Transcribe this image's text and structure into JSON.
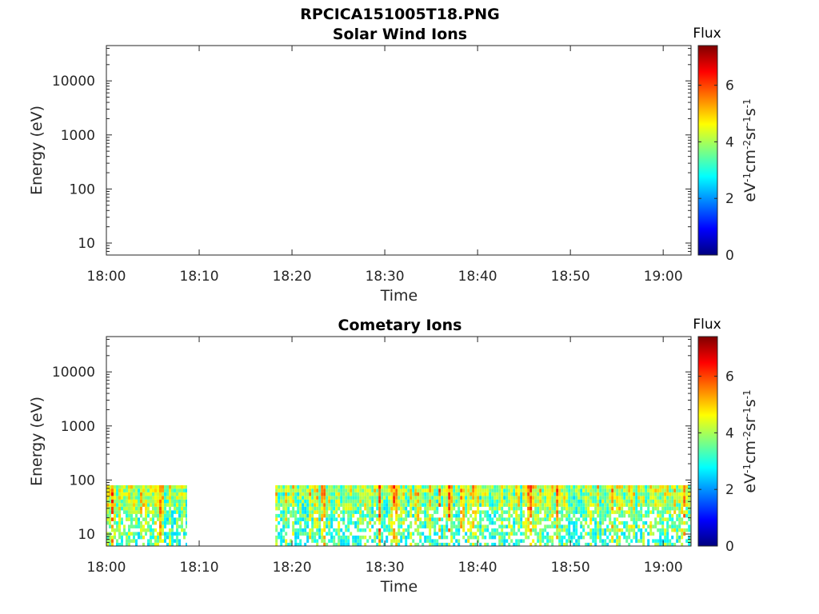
{
  "figure": {
    "title": "RPCICA151005T18.PNG"
  },
  "colormap": {
    "name": "jet",
    "stops": [
      "#00007f",
      "#0000ff",
      "#007fff",
      "#00ffff",
      "#7fff7f",
      "#ffff00",
      "#ff7f00",
      "#ff0000",
      "#7f0000"
    ]
  },
  "chart_data": [
    {
      "type": "heatmap",
      "title": "Solar Wind Ions",
      "xlabel": "Time",
      "ylabel": "Energy (eV)",
      "x_ticks": [
        "18:00",
        "18:10",
        "18:20",
        "18:30",
        "18:40",
        "18:50",
        "19:00"
      ],
      "xlim": [
        "18:00",
        "19:03"
      ],
      "y_scale": "log",
      "y_ticks": [
        "10",
        "100",
        "1000",
        "10000"
      ],
      "ylim": [
        6,
        45000
      ],
      "colorbar": {
        "title": "Flux",
        "label_parts": [
          "eV",
          "-1",
          "cm",
          "-2",
          "sr",
          "-1",
          "s",
          "-1"
        ],
        "range": [
          0,
          7.4
        ],
        "ticks": [
          "0",
          "2",
          "4",
          "6"
        ]
      },
      "data_segments": []
    },
    {
      "type": "heatmap",
      "title": "Cometary Ions",
      "xlabel": "Time",
      "ylabel": "Energy (eV)",
      "x_ticks": [
        "18:00",
        "18:10",
        "18:20",
        "18:30",
        "18:40",
        "18:50",
        "19:00"
      ],
      "xlim": [
        "18:00",
        "19:03"
      ],
      "y_scale": "log",
      "y_ticks": [
        "10",
        "100",
        "1000",
        "10000"
      ],
      "ylim": [
        6,
        45000
      ],
      "colorbar": {
        "title": "Flux",
        "label_parts": [
          "eV",
          "-1",
          "cm",
          "-2",
          "sr",
          "-1",
          "s",
          "-1"
        ],
        "range": [
          0,
          7.4
        ],
        "ticks": [
          "0",
          "2",
          "4",
          "6"
        ]
      },
      "data_segments": [
        {
          "start": "18:00",
          "end": "18:08.7",
          "energy_range": [
            6,
            80
          ],
          "flux_range": [
            2.5,
            6.5
          ]
        },
        {
          "start": "18:18.2",
          "end": "19:03",
          "energy_range": [
            6,
            80
          ],
          "flux_range": [
            2.5,
            6.5
          ]
        }
      ]
    }
  ]
}
